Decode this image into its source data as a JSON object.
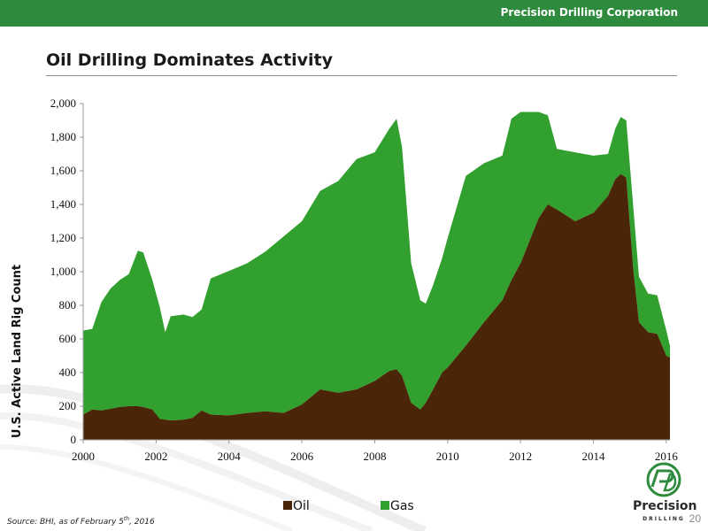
{
  "header": {
    "company": "Precision Drilling Corporation"
  },
  "slide": {
    "title": "Oil Drilling Dominates Activity",
    "source_prefix": "Source: BHI, as of February 5",
    "source_sup": "th",
    "source_suffix": ", 2016",
    "page_number": "20"
  },
  "logo": {
    "name": "Precision",
    "sub": "DRILLING"
  },
  "colors": {
    "header": "#2e8b3e",
    "oil": "#4a2508",
    "gas": "#32a02f"
  },
  "chart_data": {
    "type": "area",
    "stacked": true,
    "title": "",
    "xlabel": "",
    "ylabel": "U.S. Active Land Rig Count",
    "xlim": [
      2000,
      2016.1
    ],
    "ylim": [
      0,
      2000
    ],
    "xticks": [
      2000,
      2002,
      2004,
      2006,
      2008,
      2010,
      2012,
      2014,
      2016
    ],
    "yticks": [
      0,
      200,
      400,
      600,
      800,
      1000,
      1200,
      1400,
      1600,
      1800,
      2000
    ],
    "legend_position": "bottom",
    "x": [
      2000.0,
      2000.25,
      2000.5,
      2000.75,
      2001.0,
      2001.25,
      2001.5,
      2001.65,
      2001.9,
      2002.1,
      2002.25,
      2002.4,
      2002.75,
      2003.0,
      2003.25,
      2003.5,
      2004.0,
      2004.5,
      2005.0,
      2005.5,
      2006.0,
      2006.5,
      2007.0,
      2007.5,
      2008.0,
      2008.4,
      2008.6,
      2008.75,
      2009.0,
      2009.25,
      2009.4,
      2009.6,
      2009.85,
      2010.0,
      2010.5,
      2011.0,
      2011.5,
      2011.75,
      2012.0,
      2012.5,
      2012.75,
      2013.0,
      2013.5,
      2014.0,
      2014.4,
      2014.6,
      2014.75,
      2014.9,
      2015.1,
      2015.25,
      2015.5,
      2015.75,
      2016.0,
      2016.1
    ],
    "series": [
      {
        "name": "Oil",
        "values": [
          150,
          180,
          175,
          185,
          195,
          200,
          200,
          195,
          180,
          125,
          120,
          115,
          120,
          130,
          175,
          150,
          145,
          160,
          170,
          160,
          210,
          300,
          280,
          300,
          350,
          410,
          420,
          380,
          220,
          180,
          220,
          300,
          400,
          430,
          560,
          700,
          830,
          950,
          1050,
          1320,
          1400,
          1370,
          1300,
          1350,
          1450,
          1550,
          1580,
          1560,
          1000,
          700,
          640,
          630,
          500,
          490
        ]
      },
      {
        "name": "Gas",
        "values": [
          500,
          480,
          645,
          715,
          755,
          785,
          925,
          920,
          770,
          665,
          520,
          620,
          625,
          600,
          600,
          810,
          860,
          890,
          950,
          1050,
          1090,
          1180,
          1260,
          1370,
          1360,
          1440,
          1490,
          1360,
          830,
          650,
          590,
          620,
          680,
          770,
          1010,
          945,
          860,
          960,
          900,
          630,
          530,
          360,
          410,
          340,
          250,
          300,
          340,
          340,
          370,
          270,
          230,
          230,
          150,
          70
        ]
      }
    ]
  }
}
